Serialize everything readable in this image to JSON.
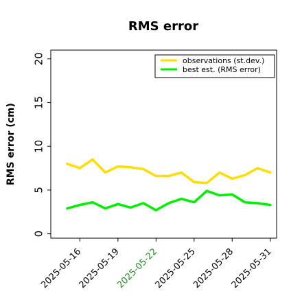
{
  "chart_data": {
    "type": "line",
    "title": "RMS error",
    "ylabel": "RMS error (cm)",
    "xlabel": "",
    "ylim": [
      -0.5,
      21
    ],
    "xlim": [
      "2025-05-13T17:00",
      "2025-05-31T12:00"
    ],
    "yticks": [
      0,
      5,
      10,
      15,
      20
    ],
    "xticks": [
      {
        "label": "2025-05-16",
        "color": "#000000"
      },
      {
        "label": "2025-05-19",
        "color": "#000000"
      },
      {
        "label": "2025-05-22",
        "color": "#228b22"
      },
      {
        "label": "2025-05-25",
        "color": "#000000"
      },
      {
        "label": "2025-05-28",
        "color": "#000000"
      },
      {
        "label": "2025-05-31",
        "color": "#000000"
      }
    ],
    "legend_position": "top-right",
    "grid": false,
    "x": [
      "2025-05-15",
      "2025-05-16",
      "2025-05-17",
      "2025-05-18",
      "2025-05-19",
      "2025-05-20",
      "2025-05-21",
      "2025-05-22",
      "2025-05-23",
      "2025-05-24",
      "2025-05-25",
      "2025-05-26",
      "2025-05-27",
      "2025-05-28",
      "2025-05-29",
      "2025-05-30",
      "2025-05-31"
    ],
    "series": [
      {
        "name": "observations (st.dev.)",
        "color": "#ffdd00",
        "values": [
          8.0,
          7.5,
          8.5,
          7.0,
          7.7,
          7.6,
          7.4,
          6.6,
          6.6,
          7.0,
          5.9,
          5.8,
          7.0,
          6.3,
          6.7,
          7.5,
          7.0
        ]
      },
      {
        "name": "best est. (RMS error)",
        "color": "#00ee00",
        "values": [
          2.9,
          3.3,
          3.6,
          2.9,
          3.4,
          3.0,
          3.5,
          2.7,
          3.5,
          4.0,
          3.6,
          4.9,
          4.4,
          4.5,
          3.6,
          3.5,
          3.3
        ]
      }
    ]
  }
}
